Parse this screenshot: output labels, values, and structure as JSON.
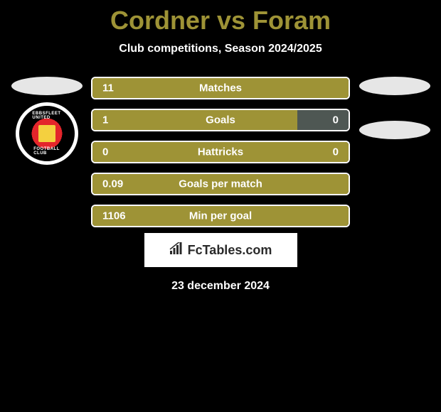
{
  "title": "Cordner vs Foram",
  "subtitle": "Club competitions, Season 2024/2025",
  "colors": {
    "background": "#000000",
    "accent": "#9e9336",
    "neutral_fill": "#4e5753",
    "border": "#ffffff",
    "text": "#ffffff",
    "brand_bg": "#ffffff",
    "brand_text": "#2a2a2a"
  },
  "left_badge": {
    "club_name_top": "EBBSFLEET UNITED",
    "club_name_bottom": "FOOTBALL CLUB",
    "outer_bg": "#000000",
    "ring": "#ffffff",
    "inner_red": "#e3252b",
    "center_shape": "#f4d03f"
  },
  "stats": [
    {
      "label": "Matches",
      "left_value": "11",
      "right_value": "",
      "left_fill_pct": 100,
      "right_fill_pct": 0,
      "left_color": "#9e9336",
      "right_color": "#4e5753"
    },
    {
      "label": "Goals",
      "left_value": "1",
      "right_value": "0",
      "left_fill_pct": 80,
      "right_fill_pct": 20,
      "left_color": "#9e9336",
      "right_color": "#4e5753"
    },
    {
      "label": "Hattricks",
      "left_value": "0",
      "right_value": "0",
      "left_fill_pct": 100,
      "right_fill_pct": 0,
      "left_color": "#9e9336",
      "right_color": "#4e5753"
    },
    {
      "label": "Goals per match",
      "left_value": "0.09",
      "right_value": "",
      "left_fill_pct": 100,
      "right_fill_pct": 0,
      "left_color": "#9e9336",
      "right_color": "#4e5753"
    },
    {
      "label": "Min per goal",
      "left_value": "1106",
      "right_value": "",
      "left_fill_pct": 100,
      "right_fill_pct": 0,
      "left_color": "#9e9336",
      "right_color": "#4e5753"
    }
  ],
  "brand": {
    "icon": "📊",
    "text": "FcTables.com"
  },
  "date": "23 december 2024"
}
